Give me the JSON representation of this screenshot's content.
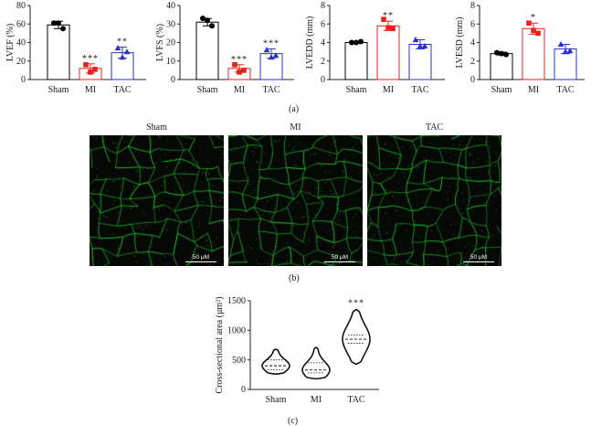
{
  "chart_data": [
    {
      "type": "bar",
      "panel": "a",
      "ylabel": "LVEF (%)",
      "ylim": [
        0,
        80
      ],
      "yticks": [
        0,
        20,
        40,
        60,
        80
      ],
      "categories": [
        "Sham",
        "MI",
        "TAC"
      ],
      "values": [
        59,
        12,
        29
      ],
      "errors": [
        4,
        5,
        6
      ],
      "points": [
        [
          61,
          61,
          55
        ],
        [
          16,
          8,
          11
        ],
        [
          34,
          24,
          30
        ]
      ],
      "colors": [
        "#000000",
        "#e8211d",
        "#2b31c8"
      ],
      "markers": [
        "circle",
        "square",
        "triangle"
      ],
      "annotations": [
        "",
        "***",
        "**"
      ]
    },
    {
      "type": "bar",
      "panel": "a",
      "ylabel": "LVFS (%)",
      "ylim": [
        0,
        40
      ],
      "yticks": [
        0,
        10,
        20,
        30,
        40
      ],
      "categories": [
        "Sham",
        "MI",
        "TAC"
      ],
      "values": [
        31,
        6,
        14
      ],
      "errors": [
        2,
        2,
        2.5
      ],
      "points": [
        [
          33,
          32,
          29
        ],
        [
          8,
          4,
          5
        ],
        [
          16,
          12,
          13
        ]
      ],
      "colors": [
        "#000000",
        "#e8211d",
        "#2b31c8"
      ],
      "markers": [
        "circle",
        "square",
        "triangle"
      ],
      "annotations": [
        "",
        "***",
        "***"
      ]
    },
    {
      "type": "bar",
      "panel": "a",
      "ylabel": "LVEDD (mm)",
      "ylim": [
        0,
        8
      ],
      "yticks": [
        0,
        2,
        4,
        6,
        8
      ],
      "categories": [
        "Sham",
        "MI",
        "TAC"
      ],
      "values": [
        4.0,
        5.8,
        3.8
      ],
      "errors": [
        0.1,
        0.5,
        0.5
      ],
      "points": [
        [
          4.0,
          4.0,
          4.1
        ],
        [
          6.5,
          5.6,
          5.5
        ],
        [
          4.3,
          3.6,
          3.6
        ]
      ],
      "colors": [
        "#000000",
        "#e8211d",
        "#2b31c8"
      ],
      "markers": [
        "circle",
        "square",
        "triangle"
      ],
      "annotations": [
        "",
        "**",
        ""
      ]
    },
    {
      "type": "bar",
      "panel": "a",
      "ylabel": "LVESD (mm)",
      "ylim": [
        0,
        8
      ],
      "yticks": [
        0,
        2,
        4,
        6,
        8
      ],
      "categories": [
        "Sham",
        "MI",
        "TAC"
      ],
      "values": [
        2.8,
        5.5,
        3.3
      ],
      "errors": [
        0.15,
        0.6,
        0.5
      ],
      "points": [
        [
          2.9,
          2.8,
          2.7
        ],
        [
          6.1,
          5.3,
          5.0
        ],
        [
          3.8,
          3.0,
          3.1
        ]
      ],
      "colors": [
        "#000000",
        "#e8211d",
        "#2b31c8"
      ],
      "markers": [
        "circle",
        "square",
        "triangle"
      ],
      "annotations": [
        "",
        "*",
        ""
      ]
    },
    {
      "type": "violin",
      "panel": "c",
      "ylabel": "Cross-sectional area (μm²)",
      "ylim": [
        0,
        1500
      ],
      "yticks": [
        0,
        500,
        1000,
        1500
      ],
      "categories": [
        "Sham",
        "MI",
        "TAC"
      ],
      "ranges": [
        [
          260,
          680
        ],
        [
          180,
          710
        ],
        [
          430,
          1350
        ]
      ],
      "medians": [
        400,
        330,
        850
      ],
      "quartiles": [
        [
          330,
          500
        ],
        [
          280,
          450
        ],
        [
          780,
          920
        ]
      ],
      "annotations": [
        "",
        "",
        "***"
      ]
    }
  ],
  "labels": {
    "panel_a": "(a)",
    "panel_b": "(b)",
    "panel_c": "(c)"
  },
  "micrographs": [
    {
      "title": "Sham",
      "scale": "50 μM"
    },
    {
      "title": "MI",
      "scale": "50 μM"
    },
    {
      "title": "TAC",
      "scale": "50 μM"
    }
  ]
}
